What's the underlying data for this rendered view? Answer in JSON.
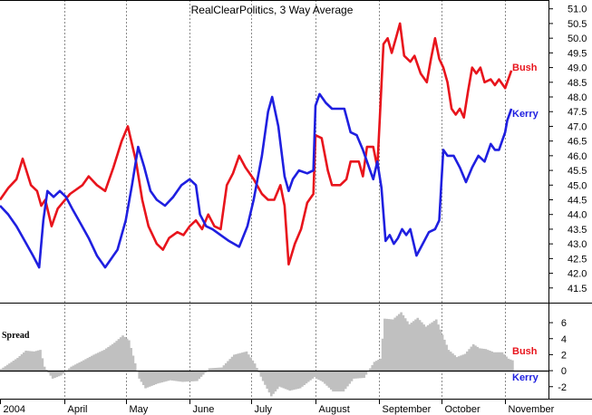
{
  "chart_data": {
    "type": "line",
    "title": "RealClearPolitics, 3 Way Average",
    "x_month_labels": [
      "2004",
      "April",
      "May",
      "June",
      "July",
      "August",
      "September",
      "October",
      "November"
    ],
    "x_month_starts": [
      "2004-03-01",
      "2004-04-01",
      "2004-05-01",
      "2004-06-01",
      "2004-07-01",
      "2004-08-01",
      "2004-09-01",
      "2004-10-01",
      "2004-11-01"
    ],
    "x_range": [
      "2004-03-01",
      "2004-11-22"
    ],
    "ylim": [
      41.0,
      51.3
    ],
    "yticks": [
      "41.5",
      "42.0",
      "42.5",
      "43.0",
      "43.5",
      "44.0",
      "44.5",
      "45.0",
      "45.5",
      "46.0",
      "46.5",
      "47.0",
      "47.5",
      "48.0",
      "48.5",
      "49.0",
      "49.5",
      "50.0",
      "50.5",
      "51.0"
    ],
    "grid": "vertical dotted at month starts",
    "series": [
      {
        "name": "Bush",
        "color": "#e8141c",
        "points": [
          [
            "2004-03-01",
            44.5
          ],
          [
            "2004-03-05",
            44.9
          ],
          [
            "2004-03-09",
            45.2
          ],
          [
            "2004-03-12",
            45.9
          ],
          [
            "2004-03-16",
            45.0
          ],
          [
            "2004-03-19",
            44.8
          ],
          [
            "2004-03-21",
            44.3
          ],
          [
            "2004-03-23",
            44.5
          ],
          [
            "2004-03-26",
            43.6
          ],
          [
            "2004-03-29",
            44.2
          ],
          [
            "2004-04-04",
            44.7
          ],
          [
            "2004-04-10",
            45.0
          ],
          [
            "2004-04-13",
            45.3
          ],
          [
            "2004-04-17",
            45.0
          ],
          [
            "2004-04-21",
            44.8
          ],
          [
            "2004-04-25",
            45.6
          ],
          [
            "2004-04-29",
            46.5
          ],
          [
            "2004-05-02",
            47.0
          ],
          [
            "2004-05-06",
            45.8
          ],
          [
            "2004-05-09",
            44.5
          ],
          [
            "2004-05-12",
            43.6
          ],
          [
            "2004-05-16",
            43.0
          ],
          [
            "2004-05-19",
            42.8
          ],
          [
            "2004-05-22",
            43.2
          ],
          [
            "2004-05-26",
            43.4
          ],
          [
            "2004-05-29",
            43.3
          ],
          [
            "2004-06-01",
            43.6
          ],
          [
            "2004-06-04",
            43.8
          ],
          [
            "2004-06-07",
            43.5
          ],
          [
            "2004-06-10",
            44.0
          ],
          [
            "2004-06-13",
            43.6
          ],
          [
            "2004-06-16",
            43.5
          ],
          [
            "2004-06-19",
            45.0
          ],
          [
            "2004-06-22",
            45.4
          ],
          [
            "2004-06-25",
            46.0
          ],
          [
            "2004-06-28",
            45.6
          ],
          [
            "2004-07-02",
            45.2
          ],
          [
            "2004-07-06",
            44.7
          ],
          [
            "2004-07-09",
            44.5
          ],
          [
            "2004-07-12",
            44.5
          ],
          [
            "2004-07-15",
            45.0
          ],
          [
            "2004-07-17",
            44.3
          ],
          [
            "2004-07-19",
            42.3
          ],
          [
            "2004-07-22",
            43.0
          ],
          [
            "2004-07-25",
            43.5
          ],
          [
            "2004-07-28",
            44.4
          ],
          [
            "2004-07-31",
            44.7
          ],
          [
            "2004-08-01",
            46.7
          ],
          [
            "2004-08-04",
            46.6
          ],
          [
            "2004-08-07",
            45.5
          ],
          [
            "2004-08-09",
            45.0
          ],
          [
            "2004-08-13",
            45.0
          ],
          [
            "2004-08-16",
            45.2
          ],
          [
            "2004-08-18",
            45.8
          ],
          [
            "2004-08-22",
            45.8
          ],
          [
            "2004-08-24",
            45.3
          ],
          [
            "2004-08-26",
            46.3
          ],
          [
            "2004-08-29",
            46.3
          ],
          [
            "2004-08-31",
            45.6
          ],
          [
            "2004-09-01",
            47.0
          ],
          [
            "2004-09-03",
            49.8
          ],
          [
            "2004-09-05",
            50.0
          ],
          [
            "2004-09-07",
            49.5
          ],
          [
            "2004-09-09",
            50.0
          ],
          [
            "2004-09-11",
            50.5
          ],
          [
            "2004-09-13",
            49.4
          ],
          [
            "2004-09-16",
            49.2
          ],
          [
            "2004-09-18",
            49.4
          ],
          [
            "2004-09-21",
            48.8
          ],
          [
            "2004-09-24",
            48.5
          ],
          [
            "2004-09-26",
            49.3
          ],
          [
            "2004-09-28",
            50.0
          ],
          [
            "2004-09-30",
            49.3
          ],
          [
            "2004-10-02",
            49.0
          ],
          [
            "2004-10-04",
            48.5
          ],
          [
            "2004-10-06",
            47.6
          ],
          [
            "2004-10-08",
            47.4
          ],
          [
            "2004-10-10",
            47.6
          ],
          [
            "2004-10-12",
            47.3
          ],
          [
            "2004-10-14",
            48.2
          ],
          [
            "2004-10-16",
            49.0
          ],
          [
            "2004-10-18",
            48.8
          ],
          [
            "2004-10-20",
            49.0
          ],
          [
            "2004-10-22",
            48.5
          ],
          [
            "2004-10-25",
            48.6
          ],
          [
            "2004-10-27",
            48.4
          ],
          [
            "2004-10-29",
            48.6
          ],
          [
            "2004-11-01",
            48.3
          ],
          [
            "2004-11-02",
            48.5
          ],
          [
            "2004-11-04",
            48.9
          ]
        ]
      },
      {
        "name": "Kerry",
        "color": "#1f1fe0",
        "points": [
          [
            "2004-03-01",
            44.3
          ],
          [
            "2004-03-05",
            44.0
          ],
          [
            "2004-03-09",
            43.6
          ],
          [
            "2004-03-13",
            43.1
          ],
          [
            "2004-03-17",
            42.6
          ],
          [
            "2004-03-20",
            42.2
          ],
          [
            "2004-03-22",
            43.8
          ],
          [
            "2004-03-24",
            44.8
          ],
          [
            "2004-03-27",
            44.6
          ],
          [
            "2004-03-30",
            44.8
          ],
          [
            "2004-04-02",
            44.6
          ],
          [
            "2004-04-05",
            44.2
          ],
          [
            "2004-04-09",
            43.7
          ],
          [
            "2004-04-13",
            43.2
          ],
          [
            "2004-04-17",
            42.6
          ],
          [
            "2004-04-21",
            42.2
          ],
          [
            "2004-04-24",
            42.5
          ],
          [
            "2004-04-27",
            42.8
          ],
          [
            "2004-05-01",
            43.8
          ],
          [
            "2004-05-04",
            45.0
          ],
          [
            "2004-05-07",
            46.3
          ],
          [
            "2004-05-10",
            45.6
          ],
          [
            "2004-05-13",
            44.8
          ],
          [
            "2004-05-16",
            44.5
          ],
          [
            "2004-05-20",
            44.3
          ],
          [
            "2004-05-24",
            44.6
          ],
          [
            "2004-05-28",
            45.0
          ],
          [
            "2004-06-01",
            45.2
          ],
          [
            "2004-06-04",
            45.0
          ],
          [
            "2004-06-06",
            44.0
          ],
          [
            "2004-06-09",
            43.6
          ],
          [
            "2004-06-12",
            43.5
          ],
          [
            "2004-06-16",
            43.3
          ],
          [
            "2004-06-20",
            43.1
          ],
          [
            "2004-06-25",
            42.9
          ],
          [
            "2004-06-29",
            43.6
          ],
          [
            "2004-07-02",
            44.5
          ],
          [
            "2004-07-06",
            46.0
          ],
          [
            "2004-07-09",
            47.5
          ],
          [
            "2004-07-11",
            48.0
          ],
          [
            "2004-07-14",
            47.0
          ],
          [
            "2004-07-17",
            45.3
          ],
          [
            "2004-07-19",
            44.8
          ],
          [
            "2004-07-21",
            45.2
          ],
          [
            "2004-07-24",
            45.5
          ],
          [
            "2004-07-28",
            45.4
          ],
          [
            "2004-07-31",
            45.5
          ],
          [
            "2004-08-01",
            47.7
          ],
          [
            "2004-08-03",
            48.1
          ],
          [
            "2004-08-06",
            47.8
          ],
          [
            "2004-08-09",
            47.6
          ],
          [
            "2004-08-12",
            47.6
          ],
          [
            "2004-08-15",
            47.6
          ],
          [
            "2004-08-18",
            46.8
          ],
          [
            "2004-08-21",
            46.7
          ],
          [
            "2004-08-24",
            46.2
          ],
          [
            "2004-08-27",
            45.6
          ],
          [
            "2004-08-29",
            45.2
          ],
          [
            "2004-08-31",
            45.8
          ],
          [
            "2004-09-02",
            44.9
          ],
          [
            "2004-09-04",
            43.1
          ],
          [
            "2004-09-06",
            43.3
          ],
          [
            "2004-09-08",
            43.0
          ],
          [
            "2004-09-10",
            43.2
          ],
          [
            "2004-09-12",
            43.5
          ],
          [
            "2004-09-14",
            43.3
          ],
          [
            "2004-09-16",
            43.5
          ],
          [
            "2004-09-19",
            42.6
          ],
          [
            "2004-09-22",
            43.0
          ],
          [
            "2004-09-25",
            43.4
          ],
          [
            "2004-09-28",
            43.5
          ],
          [
            "2004-09-30",
            43.8
          ],
          [
            "2004-10-01",
            45.0
          ],
          [
            "2004-10-02",
            46.2
          ],
          [
            "2004-10-04",
            46.0
          ],
          [
            "2004-10-07",
            46.0
          ],
          [
            "2004-10-10",
            45.6
          ],
          [
            "2004-10-13",
            45.1
          ],
          [
            "2004-10-16",
            45.6
          ],
          [
            "2004-10-19",
            46.0
          ],
          [
            "2004-10-22",
            45.8
          ],
          [
            "2004-10-25",
            46.4
          ],
          [
            "2004-10-27",
            46.2
          ],
          [
            "2004-10-29",
            46.2
          ],
          [
            "2004-11-01",
            46.8
          ],
          [
            "2004-11-02",
            47.2
          ],
          [
            "2004-11-04",
            47.6
          ]
        ]
      }
    ],
    "spread_panel": {
      "label": "Spread",
      "ylim": [
        -3.5,
        8.5
      ],
      "yticks": [
        "-2",
        "0",
        "2",
        "4",
        "6"
      ],
      "positive_label": "Bush",
      "negative_label": "Kerry",
      "bar_color": "#c0c0c0",
      "points": [
        [
          "2004-03-01",
          0.2
        ],
        [
          "2004-03-05",
          0.9
        ],
        [
          "2004-03-09",
          1.6
        ],
        [
          "2004-03-13",
          2.5
        ],
        [
          "2004-03-17",
          2.4
        ],
        [
          "2004-03-20",
          2.6
        ],
        [
          "2004-03-22",
          0.5
        ],
        [
          "2004-03-26",
          -1.0
        ],
        [
          "2004-03-30",
          -0.6
        ],
        [
          "2004-04-04",
          0.5
        ],
        [
          "2004-04-10",
          1.3
        ],
        [
          "2004-04-15",
          2.0
        ],
        [
          "2004-04-20",
          2.6
        ],
        [
          "2004-04-25",
          3.5
        ],
        [
          "2004-04-29",
          4.4
        ],
        [
          "2004-05-02",
          3.8
        ],
        [
          "2004-05-07",
          -1.0
        ],
        [
          "2004-05-10",
          -2.2
        ],
        [
          "2004-05-16",
          -1.6
        ],
        [
          "2004-05-22",
          -1.2
        ],
        [
          "2004-05-28",
          -1.4
        ],
        [
          "2004-06-04",
          -1.3
        ],
        [
          "2004-06-10",
          0.3
        ],
        [
          "2004-06-16",
          0.4
        ],
        [
          "2004-06-22",
          2.0
        ],
        [
          "2004-06-28",
          2.4
        ],
        [
          "2004-07-02",
          0.9
        ],
        [
          "2004-07-06",
          -1.3
        ],
        [
          "2004-07-10",
          -3.2
        ],
        [
          "2004-07-14",
          -2.0
        ],
        [
          "2004-07-19",
          -2.5
        ],
        [
          "2004-07-24",
          -2.2
        ],
        [
          "2004-07-31",
          -0.8
        ],
        [
          "2004-08-01",
          -1.0
        ],
        [
          "2004-08-04",
          -1.4
        ],
        [
          "2004-08-09",
          -2.6
        ],
        [
          "2004-08-14",
          -2.6
        ],
        [
          "2004-08-19",
          -1.0
        ],
        [
          "2004-08-24",
          -0.9
        ],
        [
          "2004-08-29",
          1.1
        ],
        [
          "2004-09-01",
          1.5
        ],
        [
          "2004-09-03",
          6.5
        ],
        [
          "2004-09-07",
          6.4
        ],
        [
          "2004-09-11",
          7.3
        ],
        [
          "2004-09-15",
          5.8
        ],
        [
          "2004-09-19",
          6.6
        ],
        [
          "2004-09-23",
          5.5
        ],
        [
          "2004-09-28",
          6.4
        ],
        [
          "2004-10-01",
          4.5
        ],
        [
          "2004-10-04",
          2.6
        ],
        [
          "2004-10-08",
          1.7
        ],
        [
          "2004-10-12",
          2.1
        ],
        [
          "2004-10-16",
          3.3
        ],
        [
          "2004-10-19",
          2.8
        ],
        [
          "2004-10-22",
          2.7
        ],
        [
          "2004-10-26",
          2.3
        ],
        [
          "2004-10-30",
          2.3
        ],
        [
          "2004-11-02",
          1.5
        ],
        [
          "2004-11-04",
          1.3
        ]
      ]
    }
  }
}
